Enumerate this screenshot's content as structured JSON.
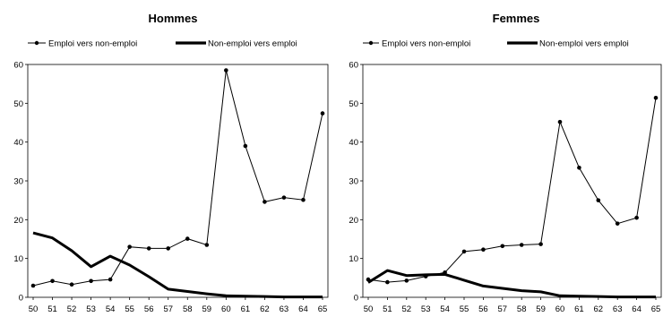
{
  "chart_data": [
    {
      "type": "line",
      "title": "Hommes",
      "x": [
        "50",
        "51",
        "52",
        "53",
        "54",
        "55",
        "56",
        "57",
        "58",
        "59",
        "60",
        "61",
        "62",
        "63",
        "64",
        "65"
      ],
      "ylim": [
        0,
        60
      ],
      "yticks": [
        0,
        10,
        20,
        30,
        40,
        50,
        60
      ],
      "grid": false,
      "legend": "top",
      "series": [
        {
          "name": "Emploi vers non-emploi",
          "style": "thin-line-with-markers",
          "color": "#000000",
          "values": [
            3.0,
            4.2,
            3.3,
            4.2,
            4.6,
            13.0,
            12.6,
            12.6,
            15.1,
            13.5,
            58.5,
            39.0,
            24.6,
            25.7,
            25.1,
            47.4
          ]
        },
        {
          "name": "Non-emploi vers emploi",
          "style": "thick-line",
          "color": "#000000",
          "values": [
            16.6,
            15.3,
            12.0,
            7.9,
            10.6,
            8.3,
            5.3,
            2.1,
            1.5,
            0.9,
            0.4,
            0.3,
            0.2,
            0.1,
            0.1,
            0.1
          ]
        }
      ]
    },
    {
      "type": "line",
      "title": "Femmes",
      "x": [
        "50",
        "51",
        "52",
        "53",
        "54",
        "55",
        "56",
        "57",
        "58",
        "59",
        "60",
        "61",
        "62",
        "63",
        "64",
        "65"
      ],
      "ylim": [
        0,
        60
      ],
      "yticks": [
        0,
        10,
        20,
        30,
        40,
        50,
        60
      ],
      "grid": false,
      "legend": "top",
      "series": [
        {
          "name": "Emploi vers non-emploi",
          "style": "thin-line-with-markers",
          "color": "#000000",
          "values": [
            4.6,
            3.9,
            4.3,
            5.4,
            6.4,
            11.8,
            12.3,
            13.2,
            13.5,
            13.7,
            45.2,
            33.4,
            25.0,
            19.0,
            20.5,
            51.4
          ]
        },
        {
          "name": "Non-emploi vers emploi",
          "style": "thick-line",
          "color": "#000000",
          "values": [
            3.8,
            6.9,
            5.6,
            5.8,
            5.9,
            4.4,
            2.9,
            2.3,
            1.7,
            1.4,
            0.4,
            0.3,
            0.2,
            0.1,
            0.1,
            0.1
          ]
        }
      ]
    }
  ]
}
